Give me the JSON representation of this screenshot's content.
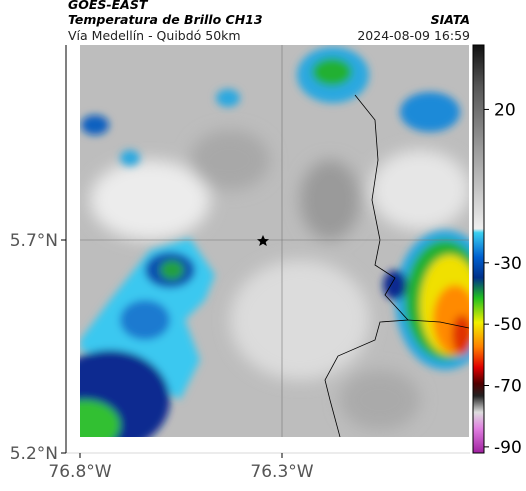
{
  "header": {
    "source": "GOES-EAST",
    "title": "Temperatura de Brillo CH13",
    "credit": "SIATA",
    "subtitle": "Vía Medellín - Quibdó 50km",
    "datetime": "2024-08-09 16:59"
  },
  "map": {
    "x_ticks": [
      "76.8°W",
      "76.3°W"
    ],
    "y_ticks": [
      "5.7°N",
      "5.2°N"
    ]
  },
  "colorbar": {
    "lim": [
      -92,
      41
    ],
    "ticks": [
      20,
      -30,
      -50,
      -70,
      -90
    ]
  }
}
